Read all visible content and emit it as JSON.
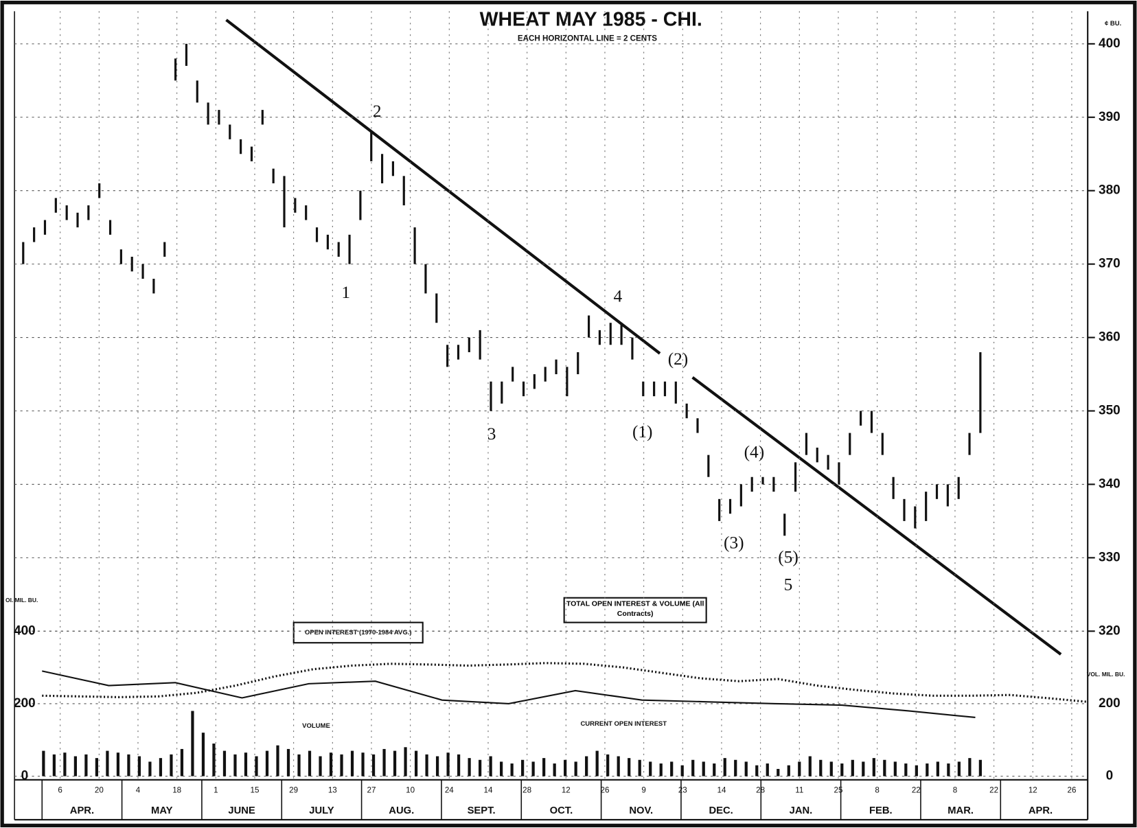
{
  "chart_data": {
    "type": "ohlc",
    "title": "WHEAT  MAY 1985 - CHI.",
    "subtitle": "EACH HORIZONTAL LINE = 2 CENTS",
    "y_label": "¢ BU.",
    "ylim": [
      320,
      404
    ],
    "yticks": [
      320,
      330,
      340,
      350,
      360,
      370,
      380,
      390,
      400
    ],
    "high": [
      373,
      375,
      376,
      379,
      378,
      377,
      378,
      381,
      376,
      372,
      371,
      370,
      368,
      373,
      398,
      400,
      395,
      392,
      391,
      389,
      387,
      386,
      391,
      383,
      382,
      379,
      378,
      375,
      374,
      373,
      374,
      380,
      388,
      385,
      384,
      382,
      375,
      370,
      366,
      359,
      359,
      360,
      361,
      354,
      354,
      356,
      354,
      355,
      356,
      357,
      356,
      358,
      363,
      361,
      362,
      362,
      360,
      354,
      354,
      354,
      354,
      351,
      349,
      344,
      338,
      338,
      340,
      341,
      341,
      341,
      336,
      343,
      347,
      345,
      344,
      343,
      347,
      350,
      350,
      347,
      341,
      338,
      337,
      339,
      340,
      340,
      341,
      347,
      358
    ],
    "low": [
      370,
      373,
      374,
      377,
      376,
      375,
      376,
      379,
      374,
      370,
      369,
      368,
      366,
      371,
      395,
      397,
      392,
      389,
      389,
      387,
      385,
      384,
      389,
      381,
      375,
      377,
      376,
      373,
      372,
      371,
      370,
      376,
      384,
      381,
      382,
      378,
      370,
      366,
      362,
      356,
      357,
      358,
      357,
      350,
      351,
      354,
      352,
      353,
      354,
      355,
      352,
      355,
      360,
      359,
      359,
      359,
      357,
      352,
      352,
      352,
      351,
      349,
      347,
      341,
      335,
      336,
      337,
      339,
      340,
      339,
      333,
      339,
      344,
      343,
      342,
      340,
      344,
      348,
      347,
      344,
      338,
      335,
      334,
      335,
      338,
      337,
      338,
      344,
      347
    ],
    "volume_label": "VOLUME",
    "volume": [
      70,
      60,
      65,
      55,
      60,
      50,
      70,
      65,
      60,
      55,
      40,
      50,
      60,
      75,
      180,
      120,
      90,
      70,
      60,
      65,
      55,
      70,
      85,
      75,
      60,
      70,
      55,
      65,
      60,
      70,
      65,
      60,
      75,
      70,
      80,
      70,
      60,
      55,
      65,
      60,
      50,
      45,
      55,
      40,
      35,
      45,
      40,
      50,
      35,
      45,
      40,
      55,
      70,
      60,
      55,
      50,
      45,
      40,
      35,
      40,
      30,
      45,
      40,
      35,
      50,
      45,
      40,
      30,
      35,
      20,
      30,
      40,
      55,
      45,
      40,
      35,
      45,
      40,
      50,
      45,
      40,
      35,
      30,
      35,
      40,
      35,
      40,
      50,
      45
    ],
    "y2_label": "OI. MIL. BU.",
    "vol_axis_label": "VOL. MIL. BU.",
    "y2lim": [
      0,
      400
    ],
    "y2ticks": [
      0,
      200,
      400
    ],
    "vol_ticks": [
      0,
      200
    ],
    "oi_avg_label": "OPEN INTEREST (1970-1984 AVG.)",
    "oi_avg": [
      222,
      220,
      218,
      220,
      230,
      250,
      275,
      295,
      305,
      310,
      308,
      305,
      308,
      312,
      310,
      300,
      285,
      270,
      262,
      268,
      250,
      238,
      228,
      222,
      222,
      224,
      215,
      205
    ],
    "oi_current_label": "CURRENT OPEN INTEREST",
    "oi_current": [
      290,
      250,
      258,
      216,
      255,
      262,
      210,
      200,
      236,
      210,
      205,
      200,
      196,
      180,
      162
    ],
    "box_label": "TOTAL OPEN INTEREST & VOLUME (All Contracts)",
    "days": [
      "6",
      "20",
      "4",
      "18",
      "1",
      "15",
      "29",
      "13",
      "27",
      "10",
      "24",
      "14",
      "28",
      "12",
      "26",
      "9",
      "23",
      "14",
      "28",
      "11",
      "25",
      "8",
      "22",
      "8",
      "22",
      "12",
      "26"
    ],
    "months": [
      "APR.",
      "MAY",
      "JUNE",
      "JULY",
      "AUG.",
      "SEPT.",
      "OCT.",
      "NOV.",
      "DEC.",
      "JAN.",
      "FEB.",
      "MAR.",
      "APR."
    ],
    "annotations": [
      "2",
      "1",
      "4",
      "3",
      "(2)",
      "(1)",
      "(4)",
      "(3)",
      "(5)",
      "5"
    ],
    "color": "#111111"
  }
}
